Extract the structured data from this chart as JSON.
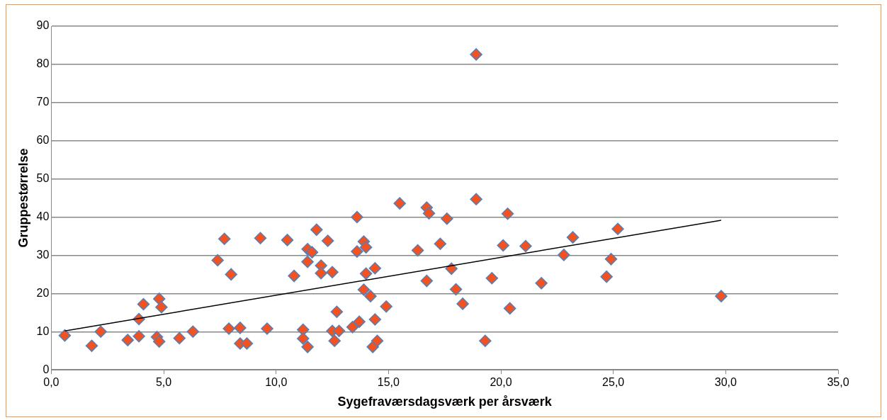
{
  "chart_data": {
    "type": "scatter",
    "xlabel": "Sygefraværsdagsværk per årsværk",
    "ylabel": "Gruppestørrelse",
    "xlim": [
      0,
      35
    ],
    "xticks": [
      {
        "value": 0,
        "label": "0,0"
      },
      {
        "value": 5,
        "label": "5,0"
      },
      {
        "value": 10,
        "label": "10,0"
      },
      {
        "value": 15,
        "label": "15,0"
      },
      {
        "value": 20,
        "label": "20,0"
      },
      {
        "value": 25,
        "label": "25,0"
      },
      {
        "value": 30,
        "label": "30,0"
      },
      {
        "value": 35,
        "label": "35,0"
      }
    ],
    "ylim": [
      0,
      90
    ],
    "yticks": [
      0,
      10,
      20,
      30,
      40,
      50,
      60,
      70,
      80,
      90
    ],
    "grid": "y",
    "legend": false,
    "series": [
      {
        "marker": "diamond",
        "color": "#f4511e",
        "x": [
          0.6,
          1.8,
          2.2,
          3.4,
          3.9,
          3.9,
          4.1,
          4.7,
          4.8,
          4.8,
          4.9,
          5.7,
          6.3,
          7.4,
          7.7,
          7.9,
          8.0,
          8.4,
          8.4,
          8.7,
          9.3,
          9.6,
          10.5,
          10.8,
          11.2,
          11.2,
          11.4,
          11.4,
          11.4,
          11.6,
          11.8,
          12.0,
          12.0,
          12.3,
          12.5,
          12.5,
          12.6,
          12.7,
          12.8,
          13.4,
          13.6,
          13.6,
          13.7,
          13.9,
          13.9,
          14.0,
          14.0,
          14.2,
          14.3,
          14.4,
          14.4,
          14.5,
          14.9,
          15.5,
          16.3,
          16.7,
          16.7,
          16.8,
          17.3,
          17.6,
          17.8,
          18.0,
          18.3,
          18.9,
          18.9,
          19.3,
          19.6,
          20.1,
          20.3,
          20.4,
          21.1,
          21.8,
          22.8,
          23.2,
          24.7,
          24.9,
          25.2,
          29.8
        ],
        "values": [
          9,
          6.3,
          10,
          7.8,
          8.8,
          13.3,
          17.2,
          8.6,
          7.4,
          18.6,
          16.4,
          8.3,
          10,
          28.7,
          34.3,
          10.8,
          25,
          11,
          6.9,
          6.9,
          34.5,
          10.8,
          34,
          24.6,
          10.5,
          8.2,
          31.6,
          28.3,
          6,
          30.8,
          36.7,
          27.3,
          25.3,
          33.8,
          10.2,
          25.6,
          7.6,
          15.2,
          10.2,
          11.2,
          40,
          31,
          12.6,
          21,
          33.6,
          32.1,
          25.2,
          19.3,
          6,
          26.6,
          13.2,
          7.6,
          16.6,
          43.6,
          31.3,
          42.5,
          23.3,
          41,
          33,
          39.6,
          26.5,
          21.1,
          17.3,
          44.7,
          82.6,
          7.6,
          24,
          32.6,
          40.9,
          16.1,
          32.4,
          22.7,
          30.1,
          34.7,
          24.4,
          29,
          36.9,
          19.3
        ]
      },
      {
        "type": "line",
        "marker": "none",
        "color": "#000000",
        "x": [
          0.6,
          29.8
        ],
        "values": [
          10.2,
          39.2
        ]
      }
    ]
  }
}
